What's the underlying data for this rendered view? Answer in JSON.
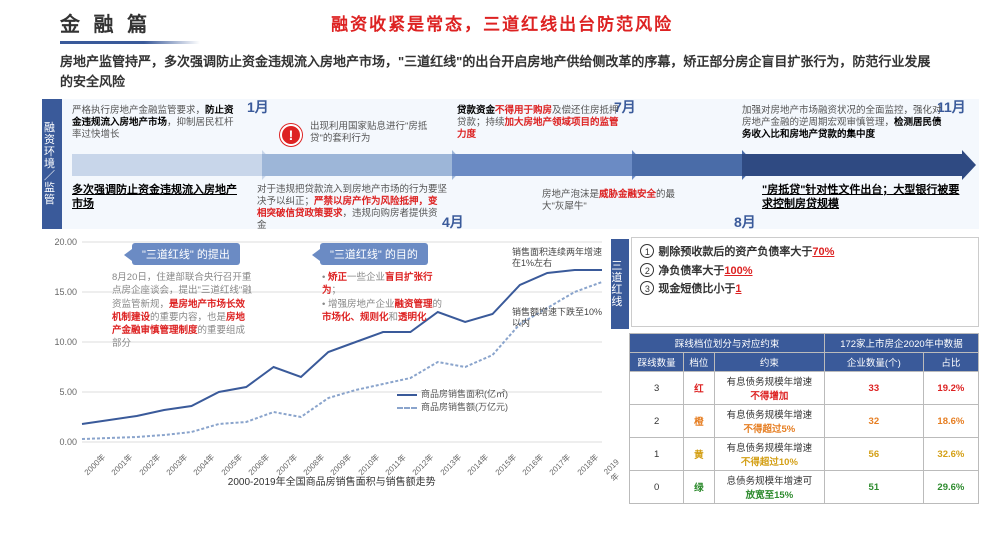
{
  "header": {
    "title": "金 融 篇",
    "subtitle": "融资收紧是常态，三道红线出台防范风险"
  },
  "intro": "房地产监管持严，多次强调防止资金违规流入房地产市场，\"三道红线\"的出台开启房地产供给侧改革的序幕，矫正部分房企盲目扩张行为，防范行业发展的安全风险",
  "timeline": {
    "vlabel": "融资环境／监管",
    "months": {
      "m1": "1月",
      "m4": "4月",
      "m7": "7月",
      "m8": "8月",
      "m11": "11月"
    },
    "arrow_colors": [
      "#c8d6ea",
      "#9db6d8",
      "#6b8bc4",
      "#4a6ca8",
      "#2f4a82"
    ],
    "t1a": "严格执行房地产金融监管要求，",
    "t1b": "防止资金违规流入房地产市场",
    "t1c": "，抑制居民杠杆率过快增长",
    "t1d": "多次强调防止资金违规流入房地产市场",
    "t2a": "出现利用国家贴息进行\"房抵贷\"的套利行为",
    "t2b": "对于违规把贷款流入到房地产市场的行为要坚决予以纠正；",
    "t2c": "严禁以房产作为风险抵押，变相突破信贷政策要求",
    "t2d": "，违规向购房者提供资金",
    "t3a": "贷款资金",
    "t3b": "不得用于购房",
    "t3c": "及偿还住房抵押贷款；持续",
    "t3d": "加大房地产领域项目的监管力度",
    "t3e": "房地产泡沫是",
    "t3f": "威胁金融安全",
    "t3g": "的最大\"灰犀牛\"",
    "t4a": "加强对房地产市场融资状况的全面监控，强化对房地产金融的逆周期宏观审慎管理，",
    "t4b": "检测居民债务收入比和房地产贷款的集中度",
    "t4c": "\"房抵贷\"针对性文件出台；大型银行被要求控制房贷规模"
  },
  "chart": {
    "title": "2000-2019年全国商品房销售面积与销售额走势",
    "y_ticks": [
      0.0,
      5.0,
      10.0,
      15.0,
      20.0
    ],
    "years": [
      "2000年",
      "2001年",
      "2002年",
      "2003年",
      "2004年",
      "2005年",
      "2006年",
      "2007年",
      "2008年",
      "2009年",
      "2010年",
      "2011年",
      "2012年",
      "2013年",
      "2014年",
      "2015年",
      "2016年",
      "2017年",
      "2018年",
      "2019年"
    ],
    "series_a_name": "商品房销售面积(亿㎡)",
    "series_b_name": "商品房销售额(万亿元)",
    "series_a_color": "#3a5a9a",
    "series_b_color": "#8aa4cc",
    "series_a": [
      1.8,
      2.2,
      2.6,
      3.2,
      3.6,
      5.0,
      5.5,
      7.5,
      6.5,
      9.0,
      10.0,
      11.0,
      11.0,
      13.0,
      12.0,
      12.8,
      15.7,
      16.9,
      17.2,
      17.2
    ],
    "series_b": [
      0.3,
      0.4,
      0.5,
      0.7,
      1.0,
      1.8,
      2.0,
      3.0,
      2.5,
      4.4,
      5.2,
      5.8,
      6.4,
      8.0,
      7.5,
      8.7,
      11.8,
      13.4,
      15.0,
      16.0
    ],
    "bubble1": "\"三道红线\" 的提出",
    "bubble2": "\"三道红线\" 的目的",
    "overlay1_a": "8月20日，住建部联合央行召开重点房企座谈会，提出\"三道红线\"融资监管新规，",
    "overlay1_b": "是房地产市场长效机制建设",
    "overlay1_c": "的重要内容，也是",
    "overlay1_d": "房地产金融审慎管理制度",
    "overlay1_e": "的重要组成部分",
    "overlay2_a": "矫正",
    "overlay2_b": "一些企业",
    "overlay2_c": "盲目扩张行为",
    "overlay2_d": "增强房地产企业",
    "overlay2_e": "融资管理",
    "overlay2_f": "的",
    "overlay2_g": "市场化、规则化",
    "overlay2_h": "和",
    "overlay2_i": "透明化",
    "callout1": "销售面积连续两年增速在1%左右",
    "callout2": "销售额增速下跌至10%以内"
  },
  "rules": {
    "vlabel": "三道红线",
    "r1": "剔除预收款后的资产负债率大于",
    "r1p": "70%",
    "r2": "净负债率大于",
    "r2p": "100%",
    "r3": "现金短债比小于",
    "r3p": "1"
  },
  "table": {
    "header1": "踩线档位划分与对应约束",
    "header2": "172家上市房企2020年中数据",
    "cols": [
      "踩线数量",
      "档位",
      "约束",
      "企业数量(个)",
      "占比"
    ],
    "rows": [
      {
        "n": "3",
        "tier": "红",
        "tier_class": "c-red",
        "rule_a": "有息债务规模年增速",
        "rule_b": "不得增加",
        "cnt": "33",
        "pct": "19.2%",
        "pct_class": "c-red"
      },
      {
        "n": "2",
        "tier": "橙",
        "tier_class": "c-orange",
        "rule_a": "有息债务规模年增速",
        "rule_b": "不得超过5%",
        "cnt": "32",
        "pct": "18.6%",
        "pct_class": "c-orange"
      },
      {
        "n": "1",
        "tier": "黄",
        "tier_class": "c-yellow",
        "rule_a": "有息债务规模年增速",
        "rule_b": "不得超过10%",
        "cnt": "56",
        "pct": "32.6%",
        "pct_class": "c-yellow"
      },
      {
        "n": "0",
        "tier": "绿",
        "tier_class": "c-green",
        "rule_a": "息债务规模年增速可",
        "rule_b": "放宽至15%",
        "cnt": "51",
        "pct": "29.6%",
        "pct_class": "c-green"
      }
    ]
  }
}
